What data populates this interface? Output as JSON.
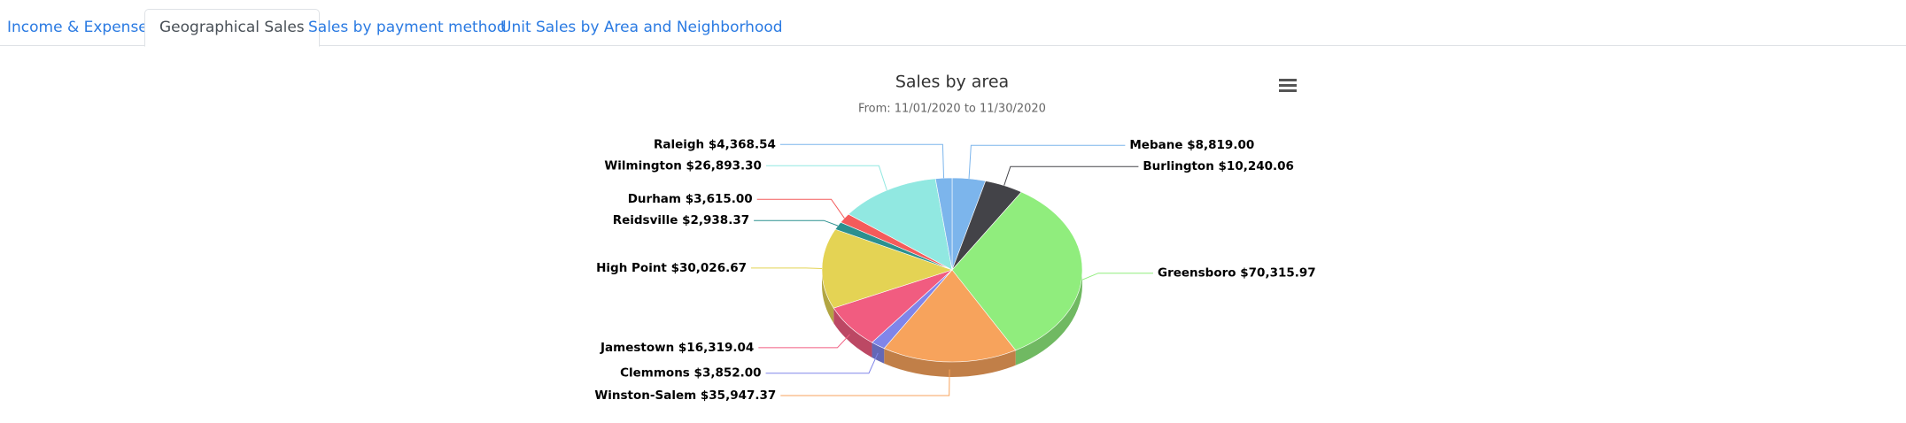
{
  "tabs": [
    "Income & Expenses",
    "Geographical Sales",
    "Sales by payment method",
    "Unit Sales by Area and Neighborhood"
  ],
  "chart_data": {
    "type": "pie",
    "three_d": true,
    "title": "Sales by area",
    "subtitle": "From: 11/01/2020 to 11/30/2020",
    "categories": [
      "Mebane",
      "Burlington",
      "Greensboro",
      "Winston-Salem",
      "Clemmons",
      "Jamestown",
      "High Point",
      "Reidsville",
      "Durham",
      "Wilmington",
      "Raleigh"
    ],
    "values": [
      8819.0,
      10240.06,
      70315.97,
      35947.37,
      3852.0,
      16319.04,
      30026.67,
      2938.37,
      3615.0,
      26893.3,
      4368.54
    ],
    "value_labels": [
      "$8,819.00",
      "$10,240.06",
      "$70,315.97",
      "$35,947.37",
      "$3,852.00",
      "$16,319.04",
      "$30,026.67",
      "$2,938.37",
      "$3,615.00",
      "$26,893.30",
      "$4,368.54"
    ],
    "colors": [
      "#7cb5ec",
      "#434348",
      "#90ed7d",
      "#f7a35c",
      "#8085e9",
      "#f15c80",
      "#e4d354",
      "#2b908f",
      "#f45b5b",
      "#91e8e1",
      "#7cb5ec"
    ]
  }
}
